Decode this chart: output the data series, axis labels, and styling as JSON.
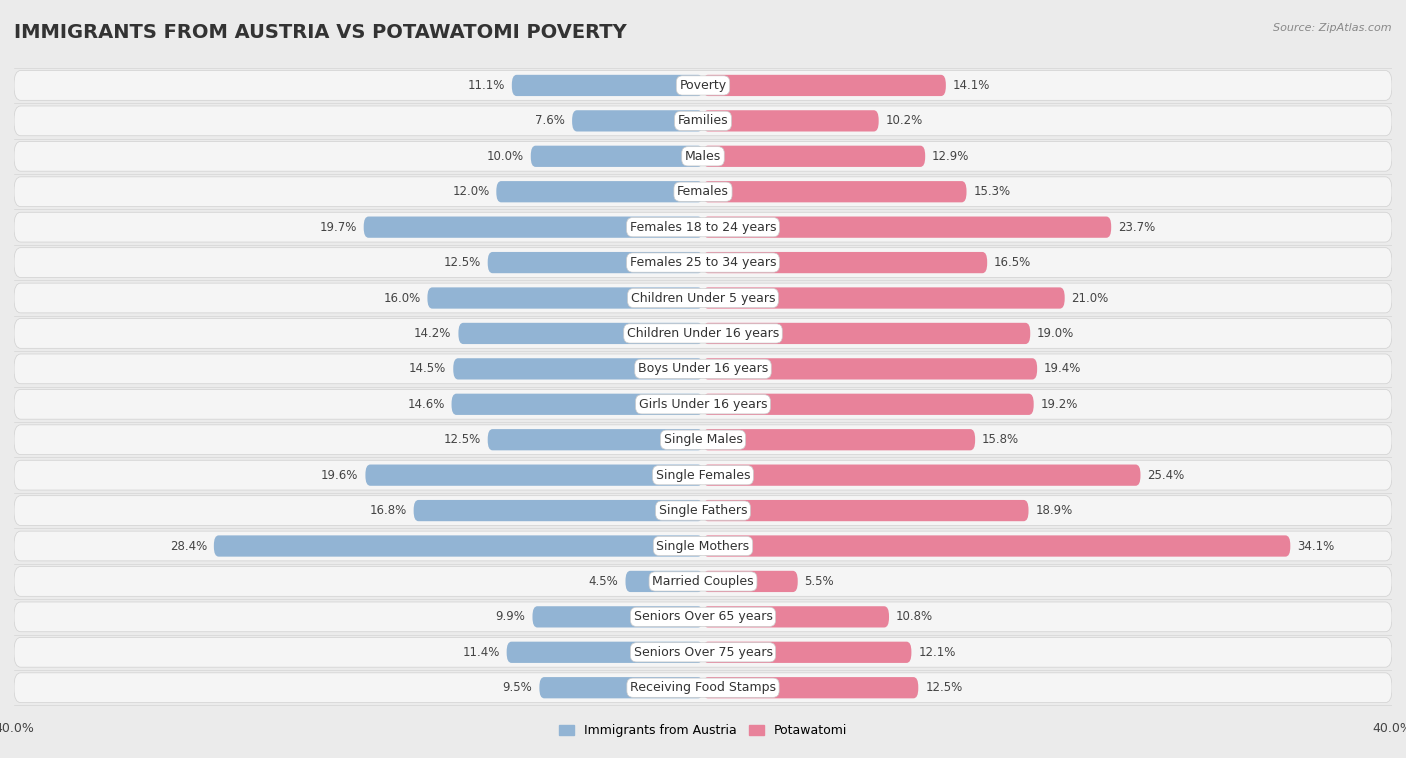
{
  "title": "IMMIGRANTS FROM AUSTRIA VS POTAWATOMI POVERTY",
  "source": "Source: ZipAtlas.com",
  "categories": [
    "Poverty",
    "Families",
    "Males",
    "Females",
    "Females 18 to 24 years",
    "Females 25 to 34 years",
    "Children Under 5 years",
    "Children Under 16 years",
    "Boys Under 16 years",
    "Girls Under 16 years",
    "Single Males",
    "Single Females",
    "Single Fathers",
    "Single Mothers",
    "Married Couples",
    "Seniors Over 65 years",
    "Seniors Over 75 years",
    "Receiving Food Stamps"
  ],
  "austria_values": [
    11.1,
    7.6,
    10.0,
    12.0,
    19.7,
    12.5,
    16.0,
    14.2,
    14.5,
    14.6,
    12.5,
    19.6,
    16.8,
    28.4,
    4.5,
    9.9,
    11.4,
    9.5
  ],
  "potawatomi_values": [
    14.1,
    10.2,
    12.9,
    15.3,
    23.7,
    16.5,
    21.0,
    19.0,
    19.4,
    19.2,
    15.8,
    25.4,
    18.9,
    34.1,
    5.5,
    10.8,
    12.1,
    12.5
  ],
  "austria_color": "#92b4d4",
  "potawatomi_color": "#e8829a",
  "background_color": "#ebebeb",
  "row_bg_color": "#e0e0e0",
  "bar_bg_color": "#f5f5f5",
  "label_bg_color": "#ffffff",
  "axis_limit": 40.0,
  "legend_austria": "Immigrants from Austria",
  "legend_potawatomi": "Potawatomi",
  "title_fontsize": 14,
  "label_fontsize": 9,
  "value_fontsize": 8.5
}
